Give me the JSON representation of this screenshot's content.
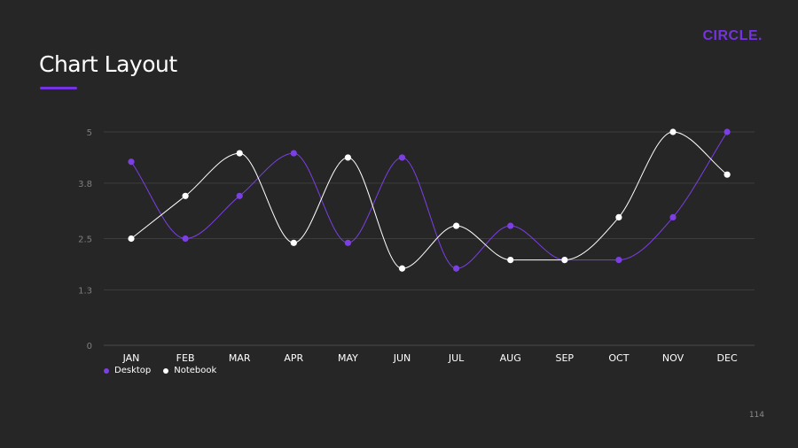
{
  "brand": "CIRCLE.",
  "page_title": "Chart Layout",
  "page_number": "114",
  "colors": {
    "background": "#262626",
    "accent": "#7433e0",
    "desktop": "#7b3fe4",
    "notebook": "#ffffff",
    "grid": "#3d3d3d"
  },
  "chart_data": {
    "type": "line",
    "categories": [
      "JAN",
      "FEB",
      "MAR",
      "APR",
      "MAY",
      "JUN",
      "JUL",
      "AUG",
      "SEP",
      "OCT",
      "NOV",
      "DEC"
    ],
    "ylim": [
      0,
      5
    ],
    "yticks": [
      0,
      1.3,
      2.5,
      3.8,
      5
    ],
    "ytick_labels": [
      "0",
      "1.3",
      "2.5",
      "3.8",
      "5"
    ],
    "grid": true,
    "legend_position": "bottom-left",
    "smooth": true,
    "series": [
      {
        "name": "Desktop",
        "color": "#7b3fe4",
        "values": [
          4.3,
          2.5,
          3.5,
          4.5,
          2.4,
          4.4,
          1.8,
          2.8,
          2.0,
          2.0,
          3.0,
          5.0
        ]
      },
      {
        "name": "Notebook",
        "color": "#ffffff",
        "values": [
          2.5,
          3.5,
          4.5,
          2.4,
          4.4,
          1.8,
          2.8,
          2.0,
          2.0,
          3.0,
          5.0,
          4.0
        ]
      }
    ]
  }
}
